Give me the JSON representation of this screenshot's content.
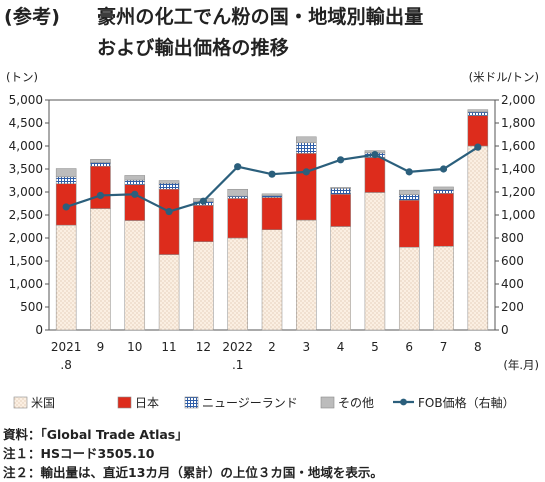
{
  "title": {
    "prefix": "(参考)",
    "line1": "豪州の化工でん粉の国・地域別輸出量",
    "line2": "および輸出価格の推移"
  },
  "notes": [
    "資料：「Global Trade Atlas」",
    "注１：HSコード3505.10",
    "注２：輸出量は、直近13カ月（累計）の上位３カ国・地域を表示。"
  ],
  "colors": {
    "us": "#fbefe2",
    "japan": "#dd2c1c",
    "nz": "#2f5ea8",
    "other": "#bcbcbc",
    "fob": "#2b5f7c"
  },
  "chart_data": {
    "type": "bar",
    "categories": [
      "2021.8",
      "9",
      "10",
      "11",
      "12",
      "2022.1",
      "2",
      "3",
      "4",
      "5",
      "6",
      "7",
      "8"
    ],
    "x_tick_labels": [
      [
        "2021",
        ".8"
      ],
      [
        "9"
      ],
      [
        "10"
      ],
      [
        "11"
      ],
      [
        "12"
      ],
      [
        "2022",
        ".1"
      ],
      [
        "2"
      ],
      [
        "3"
      ],
      [
        "4"
      ],
      [
        "5"
      ],
      [
        "6"
      ],
      [
        "7"
      ],
      [
        "8"
      ]
    ],
    "series": [
      {
        "name": "米国",
        "stack": "volume",
        "values": [
          2280,
          2640,
          2380,
          1640,
          1920,
          2000,
          2180,
          2390,
          2250,
          2990,
          1800,
          1820,
          4000
        ]
      },
      {
        "name": "日本",
        "stack": "volume",
        "values": [
          900,
          920,
          780,
          1420,
          790,
          860,
          700,
          1450,
          700,
          760,
          1020,
          1150,
          660
        ]
      },
      {
        "name": "ニュージーランド",
        "stack": "volume",
        "values": [
          150,
          80,
          100,
          130,
          80,
          50,
          40,
          230,
          130,
          100,
          120,
          80,
          80
        ]
      },
      {
        "name": "その他",
        "stack": "volume",
        "values": [
          180,
          70,
          100,
          60,
          70,
          150,
          40,
          130,
          20,
          50,
          100,
          60,
          50
        ]
      },
      {
        "name": "FOB価格（右軸）",
        "type": "line",
        "axis": "right",
        "values": [
          1070,
          1170,
          1180,
          1030,
          1120,
          1420,
          1355,
          1375,
          1480,
          1525,
          1375,
          1400,
          1590
        ]
      }
    ],
    "y_left": {
      "label": "(トン)",
      "min": 0,
      "max": 5000,
      "ticks": [
        "0",
        "500",
        "1,000",
        "1,500",
        "2,000",
        "2,500",
        "3,000",
        "3,500",
        "4,000",
        "4,500",
        "5,000"
      ]
    },
    "y_right": {
      "label": "(米ドル/トン)",
      "min": 0,
      "max": 2000,
      "ticks": [
        "0",
        "200",
        "400",
        "600",
        "800",
        "1,000",
        "1,200",
        "1,400",
        "1,600",
        "1,800",
        "2,000"
      ]
    },
    "x_unit_label": "(年.月)",
    "legend_position": "bottom",
    "grid": false
  }
}
